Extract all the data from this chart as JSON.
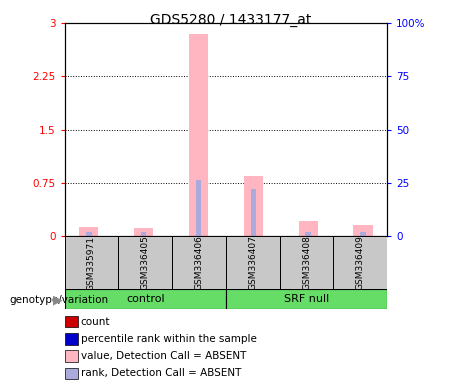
{
  "title": "GDS5280 / 1433177_at",
  "samples": [
    "GSM335971",
    "GSM336405",
    "GSM336406",
    "GSM336407",
    "GSM336408",
    "GSM336409"
  ],
  "pink_values": [
    0.13,
    0.12,
    2.85,
    0.85,
    0.22,
    0.16
  ],
  "blue_values": [
    0.055,
    0.055,
    0.79,
    0.66,
    0.055,
    0.055
  ],
  "ylim_left": [
    0,
    3.0
  ],
  "ylim_right": [
    0,
    100
  ],
  "yticks_left": [
    0,
    0.75,
    1.5,
    2.25,
    3.0
  ],
  "ytick_labels_left": [
    "0",
    "0.75",
    "1.5",
    "2.25",
    "3"
  ],
  "yticks_right": [
    0,
    25,
    50,
    75,
    100
  ],
  "ytick_labels_right": [
    "0",
    "25",
    "50",
    "75",
    "100%"
  ],
  "pink_color": "#FFB6C1",
  "blue_color": "#AAAADD",
  "dark_red_color": "#CC0000",
  "dark_blue_color": "#0000CC",
  "bg_color": "#C8C8C8",
  "group_bar_color": "#66DD66",
  "left_label": "genotype/variation"
}
